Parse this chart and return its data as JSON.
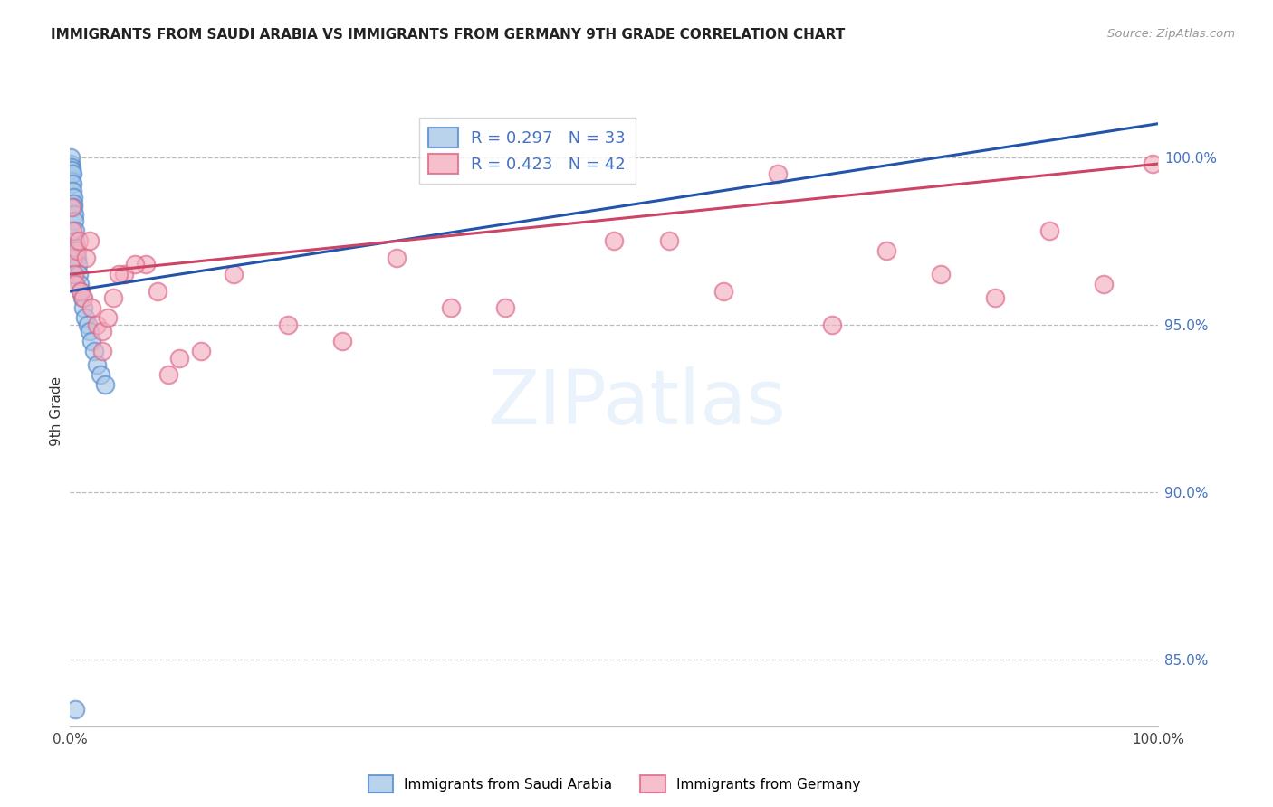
{
  "title": "IMMIGRANTS FROM SAUDI ARABIA VS IMMIGRANTS FROM GERMANY 9TH GRADE CORRELATION CHART",
  "source": "Source: ZipAtlas.com",
  "ylabel": "9th Grade",
  "r_blue": 0.297,
  "n_blue": 33,
  "r_pink": 0.423,
  "n_pink": 42,
  "legend_blue": "Immigrants from Saudi Arabia",
  "legend_pink": "Immigrants from Germany",
  "right_yticks": [
    85.0,
    90.0,
    95.0,
    100.0
  ],
  "blue_color": "#a8c8e8",
  "pink_color": "#f4b0c0",
  "blue_edge_color": "#5588cc",
  "pink_edge_color": "#dd6688",
  "blue_line_color": "#2255aa",
  "pink_line_color": "#cc4466",
  "blue_scatter_x": [
    0.05,
    0.08,
    0.1,
    0.12,
    0.15,
    0.18,
    0.2,
    0.22,
    0.25,
    0.28,
    0.3,
    0.33,
    0.36,
    0.4,
    0.45,
    0.5,
    0.55,
    0.6,
    0.7,
    0.8,
    0.9,
    1.0,
    1.1,
    1.2,
    1.4,
    1.6,
    1.8,
    2.0,
    2.2,
    2.5,
    2.8,
    3.2,
    0.45
  ],
  "blue_scatter_y": [
    99.8,
    100.0,
    99.5,
    99.7,
    99.6,
    99.3,
    99.5,
    99.2,
    99.0,
    98.8,
    98.6,
    98.5,
    98.3,
    98.1,
    97.8,
    97.5,
    97.3,
    97.0,
    96.8,
    96.5,
    96.2,
    96.0,
    95.8,
    95.5,
    95.2,
    95.0,
    94.8,
    94.5,
    94.2,
    93.8,
    93.5,
    93.2,
    83.5
  ],
  "pink_scatter_x": [
    0.1,
    0.2,
    0.3,
    0.4,
    0.5,
    0.6,
    0.8,
    1.0,
    1.2,
    1.5,
    1.8,
    2.0,
    2.5,
    3.0,
    3.5,
    4.0,
    5.0,
    7.0,
    9.0,
    10.0,
    15.0,
    20.0,
    25.0,
    30.0,
    35.0,
    40.0,
    50.0,
    60.0,
    65.0,
    70.0,
    75.0,
    80.0,
    85.0,
    90.0,
    95.0,
    99.5,
    3.0,
    4.5,
    6.0,
    8.0,
    12.0,
    55.0
  ],
  "pink_scatter_y": [
    98.5,
    97.8,
    97.0,
    96.5,
    96.2,
    97.2,
    97.5,
    96.0,
    95.8,
    97.0,
    97.5,
    95.5,
    95.0,
    94.8,
    95.2,
    95.8,
    96.5,
    96.8,
    93.5,
    94.0,
    96.5,
    95.0,
    94.5,
    97.0,
    95.5,
    95.5,
    97.5,
    96.0,
    99.5,
    95.0,
    97.2,
    96.5,
    95.8,
    97.8,
    96.2,
    99.8,
    94.2,
    96.5,
    96.8,
    96.0,
    94.2,
    97.5
  ],
  "blue_trendline_x": [
    0.0,
    100.0
  ],
  "blue_trendline_y": [
    96.0,
    101.0
  ],
  "pink_trendline_x": [
    0.0,
    100.0
  ],
  "pink_trendline_y": [
    96.5,
    99.8
  ],
  "xlim": [
    0,
    100
  ],
  "ylim_low": 83.0,
  "ylim_high": 101.8
}
